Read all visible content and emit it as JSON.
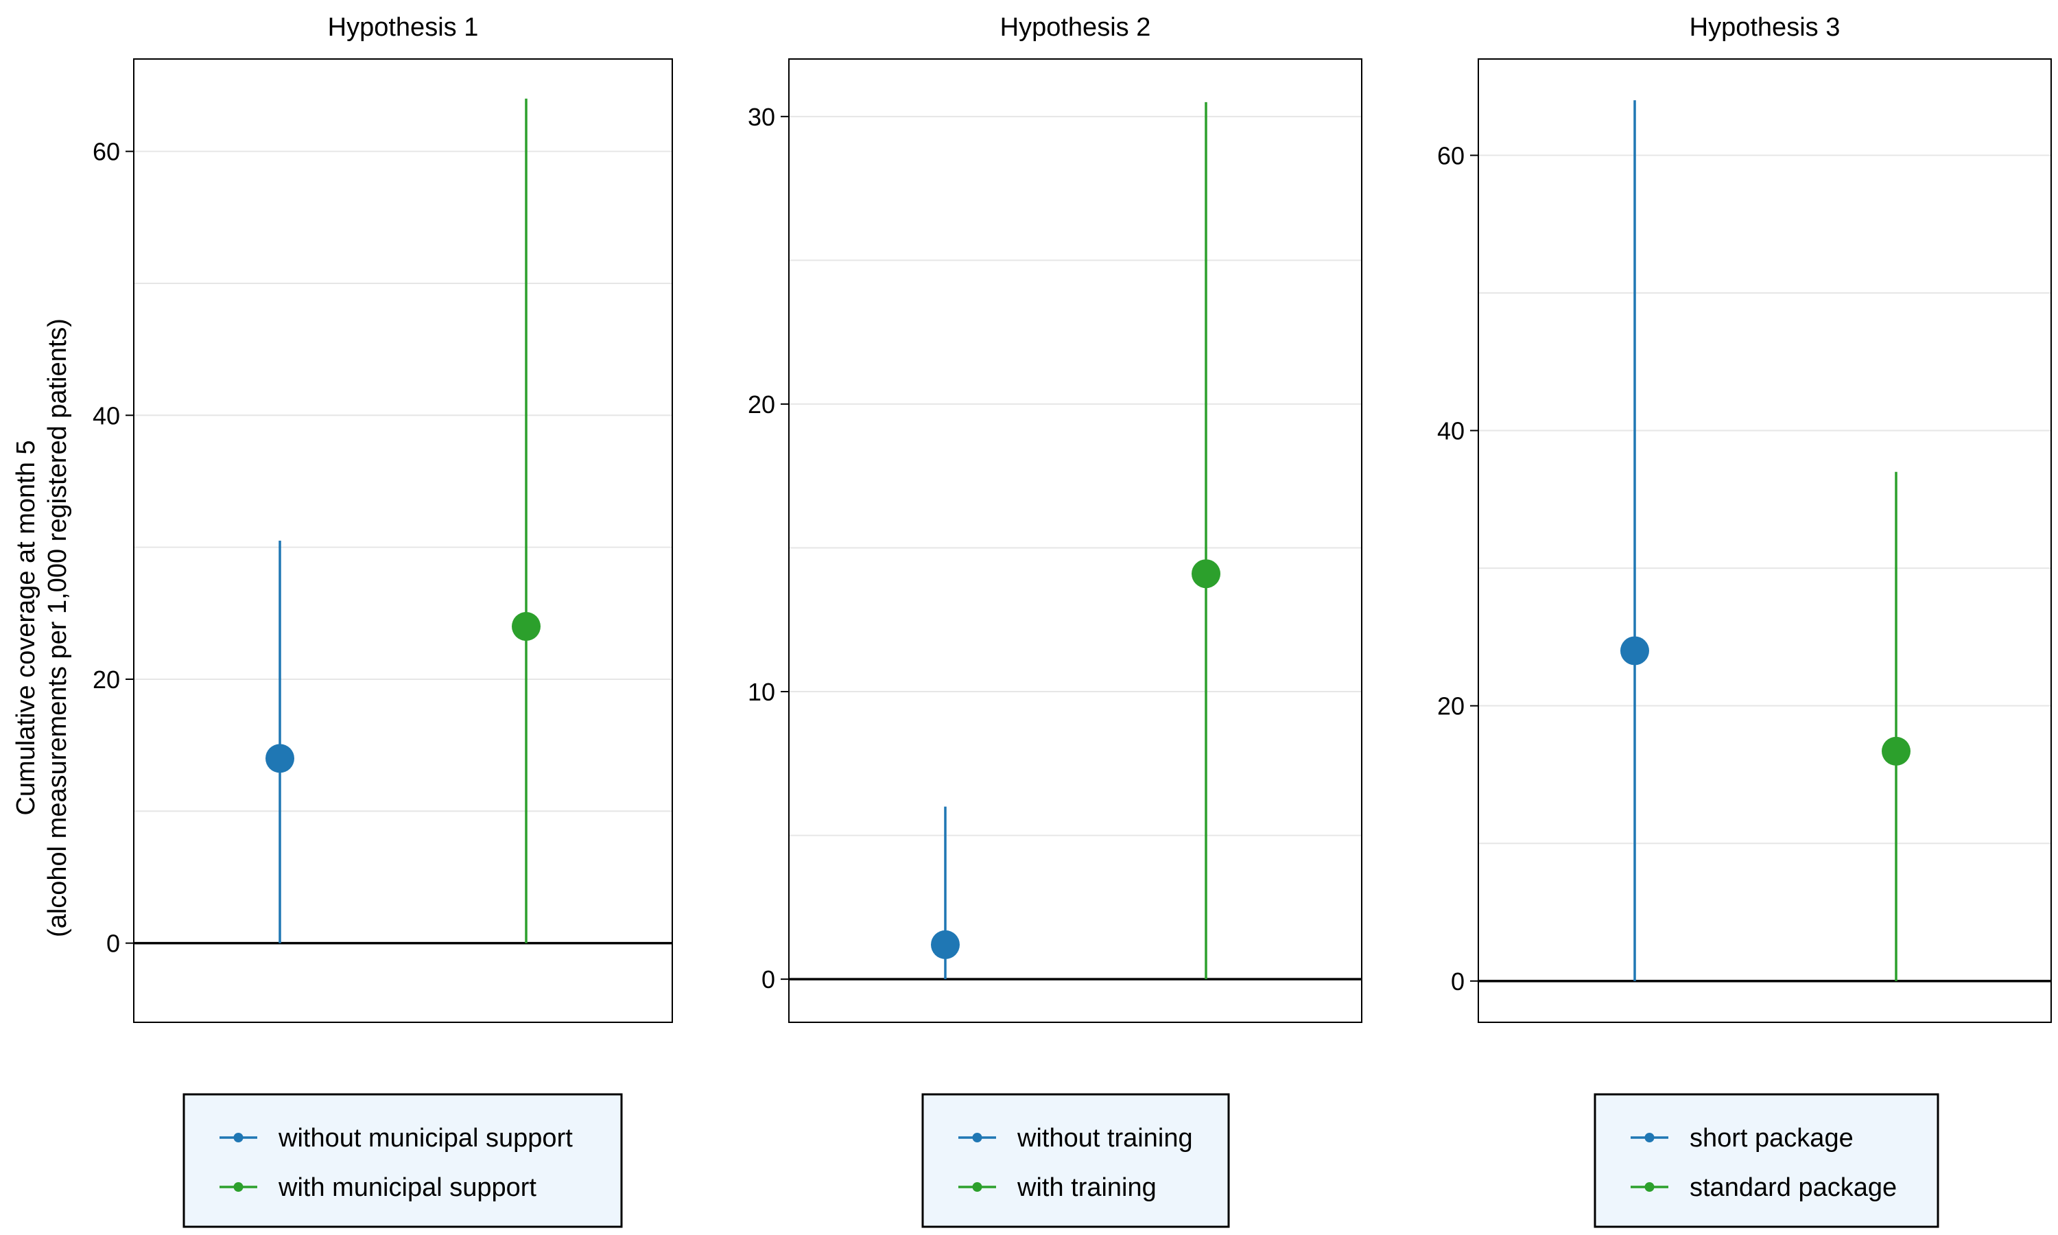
{
  "figure": {
    "ylabel_line1": "Cumulative coverage at month 5",
    "ylabel_line2": "(alcohol measurements per 1,000 registered patients)"
  },
  "colors": {
    "blue": "#1f77b4",
    "green": "#2ca02c",
    "legend_bg": "#eef6fd",
    "grid": "#e6e6e6",
    "axis": "#000000"
  },
  "chart_data": [
    {
      "type": "scatter",
      "title": "Hypothesis 1",
      "ylim": [
        -6,
        67
      ],
      "yticks": [
        0,
        20,
        40,
        60
      ],
      "minor_grid": [
        10,
        30,
        50
      ],
      "grid": true,
      "legend_position": "bottom",
      "series": [
        {
          "name": "without municipal support",
          "color": "#1f77b4",
          "estimate": 14,
          "ci_low": 0,
          "ci_high": 30.5
        },
        {
          "name": "with municipal support",
          "color": "#2ca02c",
          "estimate": 24,
          "ci_low": 0,
          "ci_high": 64
        }
      ]
    },
    {
      "type": "scatter",
      "title": "Hypothesis 2",
      "ylim": [
        -1.5,
        32
      ],
      "yticks": [
        0,
        10,
        20,
        30
      ],
      "minor_grid": [
        5,
        15,
        25
      ],
      "grid": true,
      "legend_position": "bottom",
      "series": [
        {
          "name": "without training",
          "color": "#1f77b4",
          "estimate": 1.2,
          "ci_low": 0,
          "ci_high": 6
        },
        {
          "name": "with training",
          "color": "#2ca02c",
          "estimate": 14.1,
          "ci_low": 0,
          "ci_high": 30.5
        }
      ]
    },
    {
      "type": "scatter",
      "title": "Hypothesis 3",
      "ylim": [
        -3,
        67
      ],
      "yticks": [
        0,
        20,
        40,
        60
      ],
      "minor_grid": [
        10,
        30,
        50
      ],
      "grid": true,
      "legend_position": "bottom",
      "series": [
        {
          "name": "short package",
          "color": "#1f77b4",
          "estimate": 24,
          "ci_low": 0,
          "ci_high": 64
        },
        {
          "name": "standard package",
          "color": "#2ca02c",
          "estimate": 16.7,
          "ci_low": 0,
          "ci_high": 37
        }
      ]
    }
  ]
}
